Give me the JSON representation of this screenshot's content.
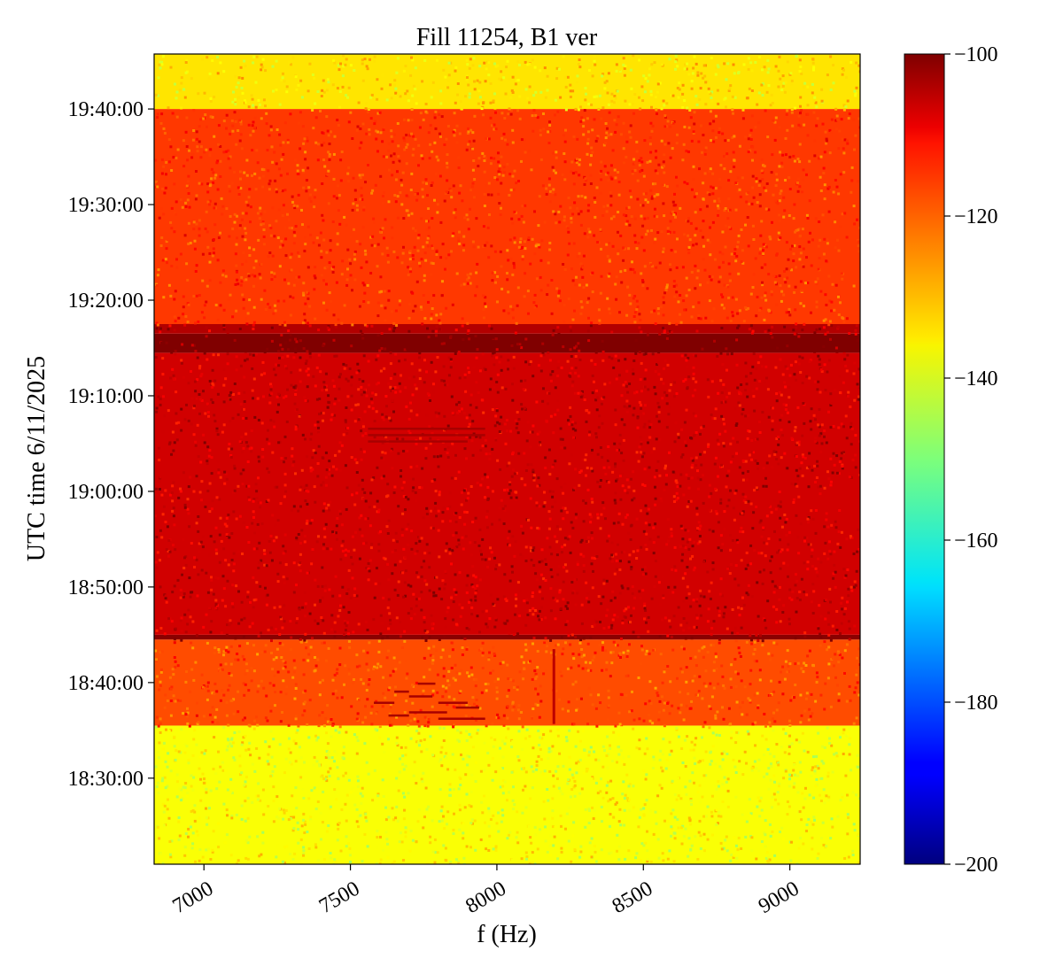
{
  "chart_data": {
    "type": "heatmap",
    "title": "Fill 11254, B1 ver",
    "xlabel": "f (Hz)",
    "ylabel": "UTC time 6/11/2025",
    "xlim": [
      6830,
      9240
    ],
    "ylim": [
      "18:21:00",
      "19:45:45"
    ],
    "x_ticks": [
      7000,
      7500,
      8000,
      8500,
      9000
    ],
    "y_ticks": [
      "18:30:00",
      "18:40:00",
      "18:50:00",
      "19:00:00",
      "19:10:00",
      "19:20:00",
      "19:30:00",
      "19:40:00"
    ],
    "colorbar": {
      "colormap": "jet",
      "range": [
        -200,
        -100
      ],
      "ticks": [
        "−200",
        "−180",
        "−160",
        "−140",
        "−120",
        "−100"
      ]
    },
    "time_bands": [
      {
        "start": "18:21:00",
        "end": "18:35:30",
        "level": -138
      },
      {
        "start": "18:35:30",
        "end": "18:44:30",
        "level": -120
      },
      {
        "start": "18:44:30",
        "end": "18:45:00",
        "level": -101
      },
      {
        "start": "18:45:00",
        "end": "19:14:30",
        "level": -108
      },
      {
        "start": "19:14:30",
        "end": "19:16:30",
        "level": -100
      },
      {
        "start": "19:16:30",
        "end": "19:17:30",
        "level": -105
      },
      {
        "start": "19:17:30",
        "end": "19:40:00",
        "level": -118
      },
      {
        "start": "19:40:00",
        "end": "19:45:45",
        "level": -135
      }
    ]
  }
}
